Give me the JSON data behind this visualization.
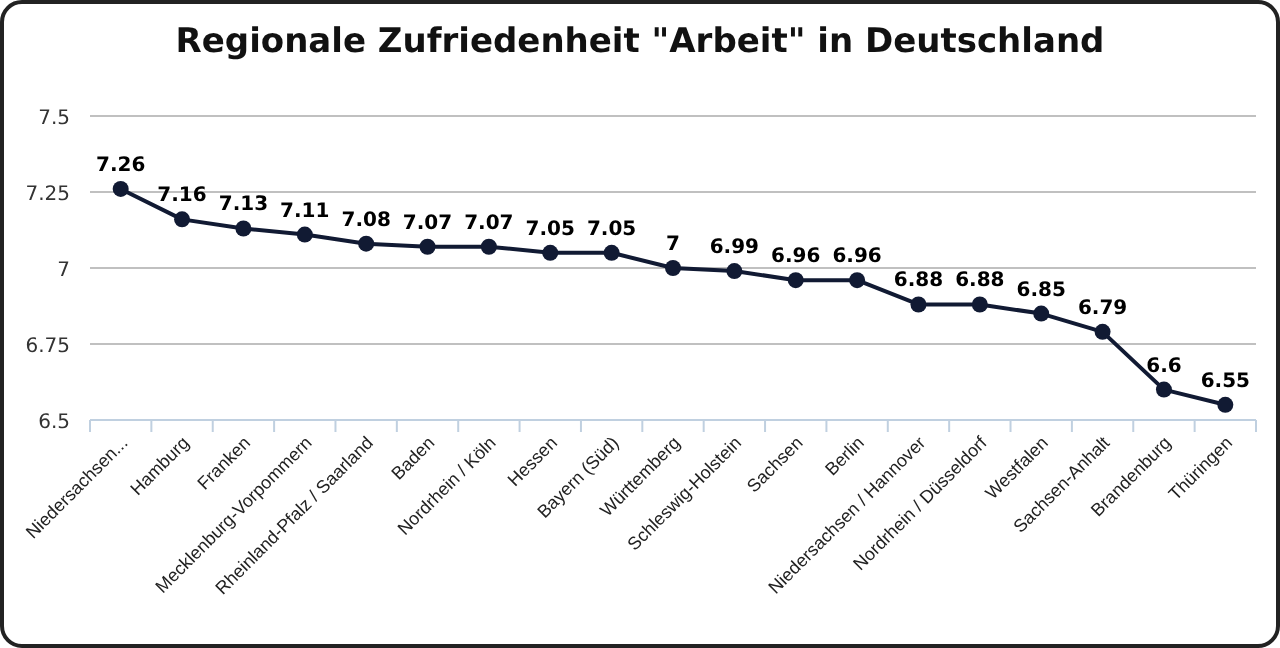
{
  "chart_data": {
    "type": "line",
    "title": "Regionale Zufriedenheit \"Arbeit\" in Deutschland",
    "categories": [
      "Niedersachsen...",
      "Hamburg",
      "Franken",
      "Mecklenburg-Vorpommern",
      "Rheinland-Pfalz / Saarland",
      "Baden",
      "Nordrhein / Köln",
      "Hessen",
      "Bayern (Süd)",
      "Württemberg",
      "Schleswig-Holstein",
      "Sachsen",
      "Berlin",
      "Niedersachsen / Hannover",
      "Nordrhein / Düsseldorf",
      "Westfalen",
      "Sachsen-Anhalt",
      "Brandenburg",
      "Thüringen"
    ],
    "series": [
      {
        "color": "#111a33",
        "values": [
          7.26,
          7.16,
          7.13,
          7.11,
          7.08,
          7.07,
          7.07,
          7.05,
          7.05,
          7,
          6.99,
          6.96,
          6.96,
          6.88,
          6.88,
          6.85,
          6.79,
          6.6,
          6.55
        ]
      }
    ],
    "ylim": [
      6.5,
      7.5
    ],
    "yticks": [
      6.5,
      6.75,
      7,
      7.25,
      7.5
    ],
    "grid": "y",
    "marker": "circle",
    "data_labels": true
  }
}
